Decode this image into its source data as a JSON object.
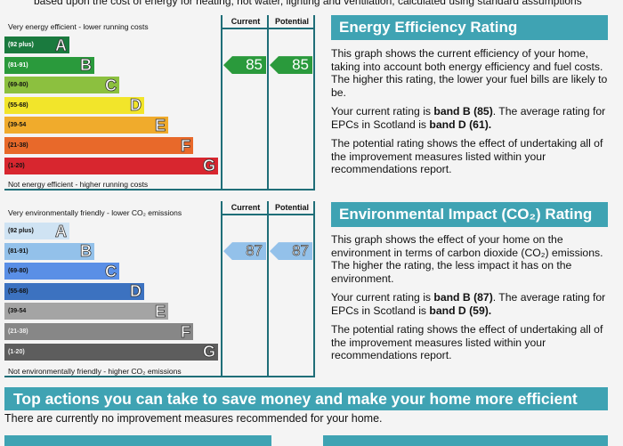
{
  "intro_text": "based upon the cost of energy for heating, hot water, lighting and ventilation, calculated using standard assumptions",
  "energy_chart": {
    "top_caption": "Very energy efficient - lower running costs",
    "bottom_caption": "Not energy efficient - higher running costs",
    "col_current": "Current",
    "col_potential": "Potential",
    "bands": [
      {
        "range": "(92 plus)",
        "letter": "A",
        "color": "#1a7a3e"
      },
      {
        "range": "(81-91)",
        "letter": "B",
        "color": "#2a9a3c"
      },
      {
        "range": "(69-80)",
        "letter": "C",
        "color": "#8cc03f"
      },
      {
        "range": "(55-68)",
        "letter": "D",
        "color": "#f2e52a"
      },
      {
        "range": "(39-54",
        "letter": "E",
        "color": "#f0ab2c"
      },
      {
        "range": "(21-38)",
        "letter": "F",
        "color": "#e8692a"
      },
      {
        "range": "(1-20)",
        "letter": "G",
        "color": "#d8262f"
      }
    ],
    "current": "85",
    "potential": "85",
    "arrow_color": "#2a9a3c"
  },
  "env_chart": {
    "top_caption": "Very environmentally friendly - lower CO₂ emissions",
    "bottom_caption": "Not environmentally friendly - higher CO₂ emissions",
    "col_current": "Current",
    "col_potential": "Potential",
    "bands": [
      {
        "range": "(92 plus)",
        "letter": "A",
        "color": "#cfe3f3"
      },
      {
        "range": "(81-91)",
        "letter": "B",
        "color": "#93c1ea"
      },
      {
        "range": "(69-80)",
        "letter": "C",
        "color": "#5a8fe6"
      },
      {
        "range": "(55-68)",
        "letter": "D",
        "color": "#3c72c0"
      },
      {
        "range": "(39-54",
        "letter": "E",
        "color": "#a4a4a4"
      },
      {
        "range": "(21-38)",
        "letter": "F",
        "color": "#878787"
      },
      {
        "range": "(1-20)",
        "letter": "G",
        "color": "#5d5d5d"
      }
    ],
    "current": "87",
    "potential": "87",
    "arrow_color": "#93c1ea"
  },
  "eer": {
    "title": "Energy Efficiency Rating",
    "p1": "This graph shows the current efficiency of your home, taking into account both energy efficiency and fuel costs. The higher this rating, the lower your fuel bills are likely to be.",
    "p2a": "Your current rating is ",
    "p2b": "band B (85)",
    "p2c": ". The average rating for EPCs in Scotland is ",
    "p2d": "band D (61).",
    "p3": "The potential rating shows the effect of undertaking all of the improvement measures listed within your recommendations report."
  },
  "eir": {
    "title": "Environmental Impact (CO₂) Rating",
    "p1": "This graph shows the effect of your home on the environment in terms of carbon dioxide (CO₂) emissions. The higher the rating, the less impact it has on the environment.",
    "p2a": "Your current rating is ",
    "p2b": "band B (87)",
    "p2c": ". The average rating for EPCs in Scotland is ",
    "p2d": "band D (59).",
    "p3": "The potential rating shows the effect of undertaking all of the improvement measures listed within your recommendations report."
  },
  "actions": {
    "title": "Top actions you can take to save money and make your home more efficient",
    "text": "There are currently no improvement measures recommended for your home."
  }
}
